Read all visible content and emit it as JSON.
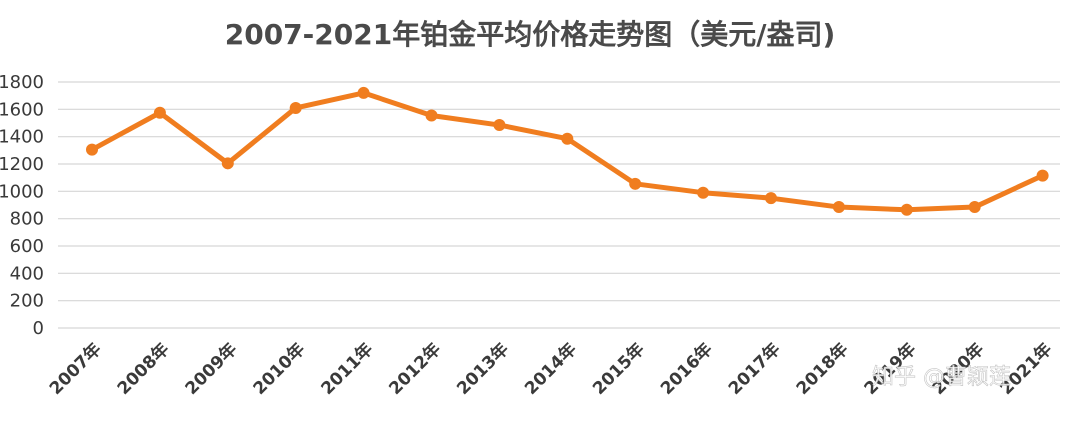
{
  "chart_data": {
    "type": "line",
    "title": "2007-2021年铂金平均价格走势图（美元/盎司)",
    "categories": [
      "2007年",
      "2008年",
      "2009年",
      "2010年",
      "2011年",
      "2012年",
      "2013年",
      "2014年",
      "2015年",
      "2016年",
      "2017年",
      "2018年",
      "2019年",
      "2020年",
      "2021年"
    ],
    "series": [
      {
        "values": [
          1305,
          1575,
          1205,
          1610,
          1720,
          1555,
          1485,
          1385,
          1055,
          990,
          950,
          885,
          865,
          885,
          1115
        ],
        "color": "#f07d1f"
      }
    ],
    "yticks": [
      0,
      200,
      400,
      600,
      800,
      1000,
      1200,
      1400,
      1600,
      1800
    ],
    "ylim": [
      0,
      1800
    ],
    "grid": true,
    "legend": "none"
  },
  "watermark": {
    "text": "知乎 @曹颖莲"
  }
}
